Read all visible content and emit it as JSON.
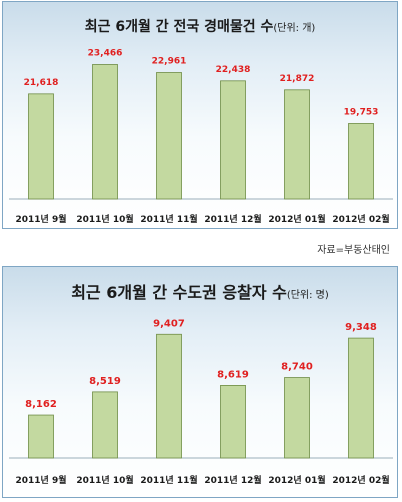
{
  "source_note": "자료=부동산태인",
  "colors": {
    "bar_fill": "#c3d9a0",
    "bar_stroke": "#6e8c45",
    "value_label": "#e02020",
    "axis": "#9aaeba"
  },
  "chart_data": [
    {
      "type": "bar",
      "title": "최근 6개월 간 전국 경매물건 수",
      "unit": "(단위: 개)",
      "categories": [
        "2011년 9월",
        "2011년 10월",
        "2011년 11월",
        "2011년 12월",
        "2012년 01월",
        "2012년 02월"
      ],
      "values": [
        21618,
        23466,
        22961,
        22438,
        21872,
        19753
      ],
      "value_labels": [
        "21,618",
        "23,466",
        "22,961",
        "22,438",
        "21,872",
        "19,753"
      ],
      "ylim": [
        15000,
        24000
      ],
      "grid": false,
      "legend": "none"
    },
    {
      "type": "bar",
      "title": "최근 6개월 간 수도권 응찰자 수",
      "unit": "(단위: 명)",
      "categories": [
        "2011년 9월",
        "2011년 10월",
        "2011년 11월",
        "2011년 12월",
        "2012년 01월",
        "2012년 02월"
      ],
      "values": [
        8162,
        8519,
        9407,
        8619,
        8740,
        9348
      ],
      "value_labels": [
        "8,162",
        "8,519",
        "9,407",
        "8,619",
        "8,740",
        "9,348"
      ],
      "ylim": [
        7500,
        9550
      ],
      "grid": false,
      "legend": "none"
    }
  ]
}
